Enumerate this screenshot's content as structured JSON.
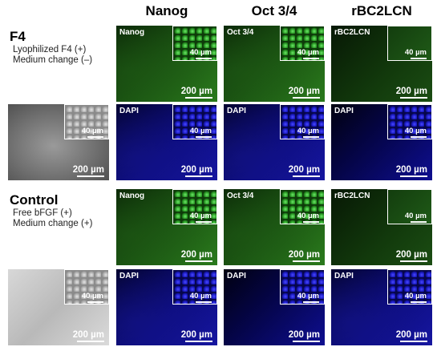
{
  "columns": [
    "Nanog",
    "Oct 3/4",
    "rBC2LCN"
  ],
  "groups": [
    {
      "title": "F4",
      "lines": [
        "Lyophilized F4 (+)",
        "Medium change (–)"
      ],
      "marker_labels": [
        "Nanog",
        "Oct 3/4",
        "rBC2LCN"
      ],
      "dapi_label": "DAPI"
    },
    {
      "title": "Control",
      "lines": [
        "Free bFGF (+)",
        "Medium change (+)"
      ],
      "marker_labels": [
        "Nanog",
        "Oct 3/4",
        "rBC2LCN"
      ],
      "dapi_label": "DAPI"
    }
  ],
  "scale_main": "200 µm",
  "scale_inset": "40 µm",
  "colors": {
    "marker": "#2a7a1c",
    "dapi": "#1616a0",
    "phase": "#8a8a8a"
  }
}
